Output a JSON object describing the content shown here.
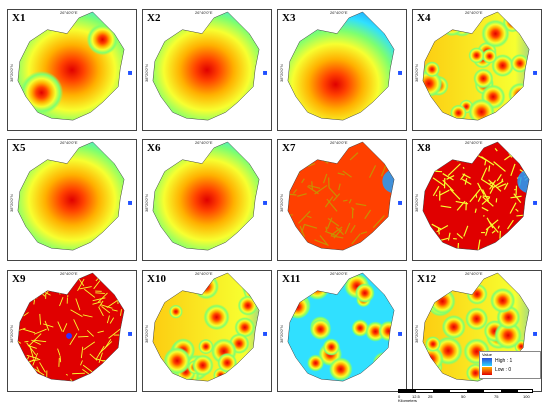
{
  "panels": [
    {
      "label": "X1",
      "pattern": "smooth_two_hot"
    },
    {
      "label": "X2",
      "pattern": "smooth_center"
    },
    {
      "label": "X3",
      "pattern": "smooth_center_low"
    },
    {
      "label": "X4",
      "pattern": "hotspots_many"
    },
    {
      "label": "X5",
      "pattern": "smooth_center"
    },
    {
      "label": "X6",
      "pattern": "smooth_center"
    },
    {
      "label": "X7",
      "pattern": "network_red"
    },
    {
      "label": "X8",
      "pattern": "dense_red"
    },
    {
      "label": "X9",
      "pattern": "dense_red_full"
    },
    {
      "label": "X10",
      "pattern": "hotspots_many"
    },
    {
      "label": "X11",
      "pattern": "hotspots_mixed"
    },
    {
      "label": "X12",
      "pattern": "hotspots_many"
    }
  ],
  "coord_top": "26°40'0\"E",
  "coord_side": "38°20'0\"N",
  "legend": {
    "title": "Value",
    "high_label": "High : 1",
    "low_label": "Low : 0",
    "high_color": "#2a4ad6",
    "low_color": "#e10000"
  },
  "scalebar": {
    "ticks": [
      "0",
      "12.5",
      "25",
      "50",
      "75",
      "100"
    ],
    "unit": "Kilometers"
  },
  "colors": {
    "ramp": [
      "#2030d0",
      "#1f9fff",
      "#30e0ff",
      "#7dff70",
      "#f7ff30",
      "#ffb000",
      "#ff4000",
      "#e00000"
    ],
    "outline": "#c89000"
  }
}
